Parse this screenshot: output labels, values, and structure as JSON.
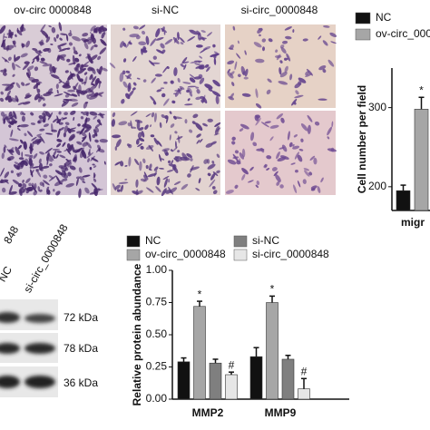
{
  "images": {
    "columns": [
      "ov-circ 0000848",
      "si-NC",
      "si-circ_0000848"
    ]
  },
  "blot": {
    "lanes": [
      "848",
      "NC",
      "si-circ_0000848"
    ],
    "bands": [
      "72 kDa",
      "78 kDa",
      "36 kDa"
    ]
  },
  "chart_data": [
    {
      "type": "bar",
      "y_label": "Cell number per field",
      "categories": [
        "migr"
      ],
      "ylim": [
        170,
        350
      ],
      "yticks": [
        200,
        300
      ],
      "series": [
        {
          "name": "NC",
          "color": "#111111",
          "values": [
            195
          ],
          "errors": [
            7
          ]
        },
        {
          "name": "ov-circ_000",
          "color": "#a6a6a6",
          "values": [
            298
          ],
          "errors": [
            15
          ],
          "marker": "*"
        }
      ]
    },
    {
      "type": "bar",
      "y_label": "Relative  protein abundance",
      "categories": [
        "MMP2",
        "MMP9"
      ],
      "ylim": [
        0,
        1.0
      ],
      "yticks": [
        {
          "value": 0,
          "label": "0.00"
        },
        {
          "value": 0.25,
          "label": "0.25"
        },
        {
          "value": 0.5,
          "label": "0.50"
        },
        {
          "value": 0.75,
          "label": "0.75"
        },
        {
          "value": 1.0,
          "label": "1.00"
        }
      ],
      "series": [
        {
          "name": "NC",
          "color": "#111111",
          "values": [
            0.29,
            0.33
          ],
          "errors": [
            0.03,
            0.07
          ]
        },
        {
          "name": "ov-circ_0000848",
          "color": "#a6a6a6",
          "values": [
            0.72,
            0.75
          ],
          "errors": [
            0.04,
            0.05
          ],
          "marker": "*"
        },
        {
          "name": "si-NC",
          "color": "#7f7f7f",
          "values": [
            0.28,
            0.31
          ],
          "errors": [
            0.03,
            0.03
          ]
        },
        {
          "name": "si-circ_0000848",
          "color": "#e6e6e6",
          "values": [
            0.19,
            0.08
          ],
          "errors": [
            0.02,
            0.08
          ],
          "marker": "#"
        }
      ]
    }
  ]
}
